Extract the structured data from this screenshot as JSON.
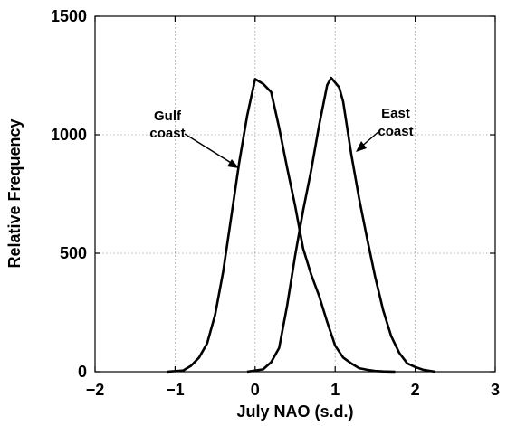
{
  "chart_data": {
    "type": "line",
    "xlabel": "July NAO (s.d.)",
    "ylabel": "Relative Frequency",
    "xlim": [
      -2,
      3
    ],
    "ylim": [
      0,
      1500
    ],
    "x_ticks": [
      "−2",
      "−1",
      "0",
      "1",
      "2",
      "3"
    ],
    "y_ticks": [
      "0",
      "500",
      "1000",
      "1500"
    ],
    "grid": true,
    "series": [
      {
        "name": "Gulf coast",
        "label_lines": [
          "Gulf",
          "coast"
        ],
        "x": [
          -1.1,
          -0.9,
          -0.8,
          -0.7,
          -0.6,
          -0.5,
          -0.4,
          -0.3,
          -0.2,
          -0.1,
          0.0,
          0.1,
          0.2,
          0.3,
          0.4,
          0.5,
          0.6,
          0.7,
          0.8,
          0.9,
          1.0,
          1.1,
          1.2,
          1.3,
          1.4,
          1.5,
          1.6,
          1.75
        ],
        "y": [
          0,
          5,
          25,
          60,
          120,
          240,
          420,
          650,
          880,
          1080,
          1235,
          1215,
          1180,
          1030,
          860,
          700,
          520,
          410,
          320,
          210,
          110,
          60,
          35,
          15,
          8,
          3,
          1,
          0
        ]
      },
      {
        "name": "East coast",
        "label_lines": [
          "East",
          "coast"
        ],
        "x": [
          -0.1,
          0.1,
          0.2,
          0.3,
          0.4,
          0.5,
          0.6,
          0.7,
          0.8,
          0.9,
          0.95,
          1.05,
          1.1,
          1.2,
          1.3,
          1.4,
          1.5,
          1.6,
          1.7,
          1.8,
          1.9,
          2.0,
          2.1,
          2.25
        ],
        "y": [
          0,
          10,
          40,
          100,
          280,
          490,
          680,
          850,
          1040,
          1210,
          1240,
          1200,
          1140,
          920,
          730,
          560,
          400,
          260,
          150,
          80,
          35,
          20,
          8,
          0
        ]
      }
    ]
  }
}
